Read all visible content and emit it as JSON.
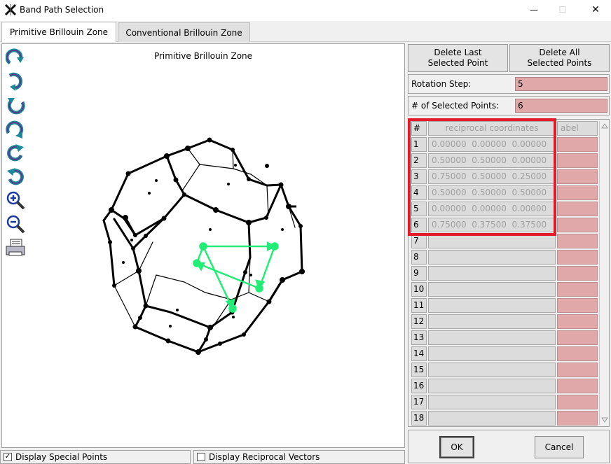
{
  "window": {
    "title": "Band Path Selection",
    "minimize": "—",
    "maximize": "☐",
    "close": "✕"
  },
  "tabs": [
    {
      "label": "Primitive Brillouin Zone",
      "active": true
    },
    {
      "label": "Conventional Brillouin Zone",
      "active": false
    }
  ],
  "canvas": {
    "title": "Primitive Brillouin Zone",
    "tools": [
      "rotate-up-icon",
      "rotate-down-icon",
      "rotate-left-icon",
      "rotate-right-icon",
      "rotate-cw-icon",
      "rotate-ccw-icon",
      "zoom-in-icon",
      "zoom-out-icon",
      "print-icon"
    ]
  },
  "right_panel": {
    "delete_last_line1": "Delete Last",
    "delete_last_line2": "Selected Point",
    "delete_all_line1": "Delete All",
    "delete_all_line2": "Selected Points",
    "rotation_step_label": "Rotation Step:",
    "rotation_step_value": "5",
    "selected_points_label": "# of Selected Points:",
    "selected_points_value": "6"
  },
  "table": {
    "headers": {
      "index": "#",
      "coords": "reciprocal coordinates",
      "label": "abel"
    },
    "rows": [
      {
        "index": "1",
        "coords": "0.00000  0.00000  0.00000",
        "label": ""
      },
      {
        "index": "2",
        "coords": "0.50000  0.50000  0.00000",
        "label": ""
      },
      {
        "index": "3",
        "coords": "0.75000  0.50000  0.25000",
        "label": ""
      },
      {
        "index": "4",
        "coords": "0.50000  0.50000  0.50000",
        "label": ""
      },
      {
        "index": "5",
        "coords": "0.00000  0.00000  0.00000",
        "label": ""
      },
      {
        "index": "6",
        "coords": "0.75000  0.37500  0.37500",
        "label": ""
      },
      {
        "index": "7",
        "coords": "",
        "label": ""
      },
      {
        "index": "8",
        "coords": "",
        "label": ""
      },
      {
        "index": "9",
        "coords": "",
        "label": ""
      },
      {
        "index": "10",
        "coords": "",
        "label": ""
      },
      {
        "index": "11",
        "coords": "",
        "label": ""
      },
      {
        "index": "12",
        "coords": "",
        "label": ""
      },
      {
        "index": "13",
        "coords": "",
        "label": ""
      },
      {
        "index": "14",
        "coords": "",
        "label": ""
      },
      {
        "index": "15",
        "coords": "",
        "label": ""
      },
      {
        "index": "16",
        "coords": "",
        "label": ""
      },
      {
        "index": "17",
        "coords": "",
        "label": ""
      },
      {
        "index": "18",
        "coords": "",
        "label": ""
      }
    ]
  },
  "buttons": {
    "ok": "OK",
    "cancel": "Cancel"
  },
  "options": {
    "display_special_points": {
      "label": "Display Special Points",
      "checked": true
    },
    "display_reciprocal_vectors": {
      "label": "Display Reciprocal Vectors",
      "checked": false
    }
  },
  "colors": {
    "path": "#22ee77",
    "highlight": "#e21b2b",
    "field_bg": "#e0a8a8"
  }
}
